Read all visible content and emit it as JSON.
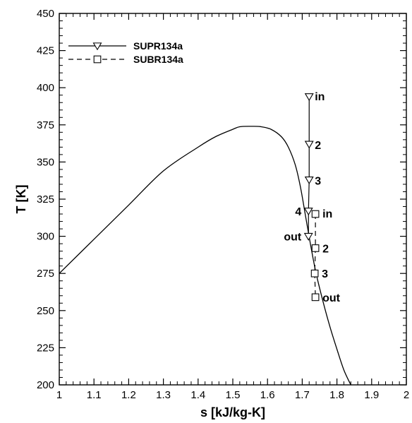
{
  "chart_data": {
    "type": "line",
    "xlabel": "s [kJ/kg-K]",
    "ylabel": "T [K]",
    "xlim": [
      1,
      2
    ],
    "ylim": [
      200,
      450
    ],
    "xticks": [
      "1",
      "1.1",
      "1.2",
      "1.3",
      "1.4",
      "1.5",
      "1.6",
      "1.7",
      "1.8",
      "1.9",
      "2"
    ],
    "yticks": [
      "200",
      "225",
      "250",
      "275",
      "300",
      "325",
      "350",
      "375",
      "400",
      "425",
      "450"
    ],
    "grid": false,
    "legend_position": "top-left",
    "saturation_dome": {
      "x": [
        1.0,
        1.1,
        1.2,
        1.3,
        1.4,
        1.45,
        1.5,
        1.52,
        1.55,
        1.58,
        1.61,
        1.64,
        1.66,
        1.68,
        1.695,
        1.71,
        1.725,
        1.74,
        1.76,
        1.78,
        1.8,
        1.82,
        1.84
      ],
      "y": [
        275,
        298,
        321,
        344,
        360,
        367,
        372,
        373.7,
        374,
        373.8,
        372,
        367,
        360,
        348,
        333,
        313,
        293,
        275,
        256,
        239,
        224,
        210,
        200
      ]
    },
    "series": [
      {
        "name": "SUPR134a",
        "line_style": "solid",
        "marker": "triangle-down",
        "x": [
          1.72,
          1.72,
          1.72,
          1.718,
          1.718
        ],
        "y": [
          394,
          362,
          338,
          317,
          300
        ],
        "labels": [
          "in",
          "2",
          "3",
          "4",
          "out"
        ]
      },
      {
        "name": "SUBR134a",
        "line_style": "dashed",
        "marker": "square",
        "x": [
          1.738,
          1.738,
          1.736,
          1.738
        ],
        "y": [
          315,
          292,
          275,
          259
        ],
        "labels": [
          "in",
          "2",
          "3",
          "out"
        ]
      }
    ]
  }
}
